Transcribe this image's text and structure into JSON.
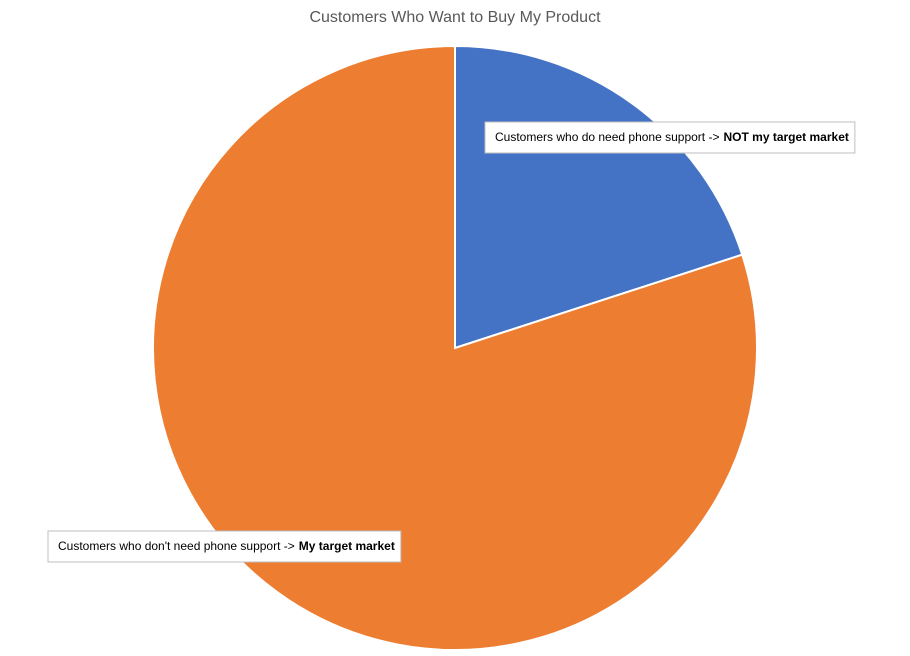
{
  "chart_data": {
    "type": "pie",
    "title": "Customers Who Want to Buy My Product",
    "slices": [
      {
        "label": "Customers who do need phone support ->",
        "label_bold": "NOT my target market",
        "value": 20,
        "color": "#4472c4"
      },
      {
        "label": "Customers who don't need phone support ->",
        "label_bold": "My target market",
        "value": 80,
        "color": "#ed7d31"
      }
    ]
  }
}
